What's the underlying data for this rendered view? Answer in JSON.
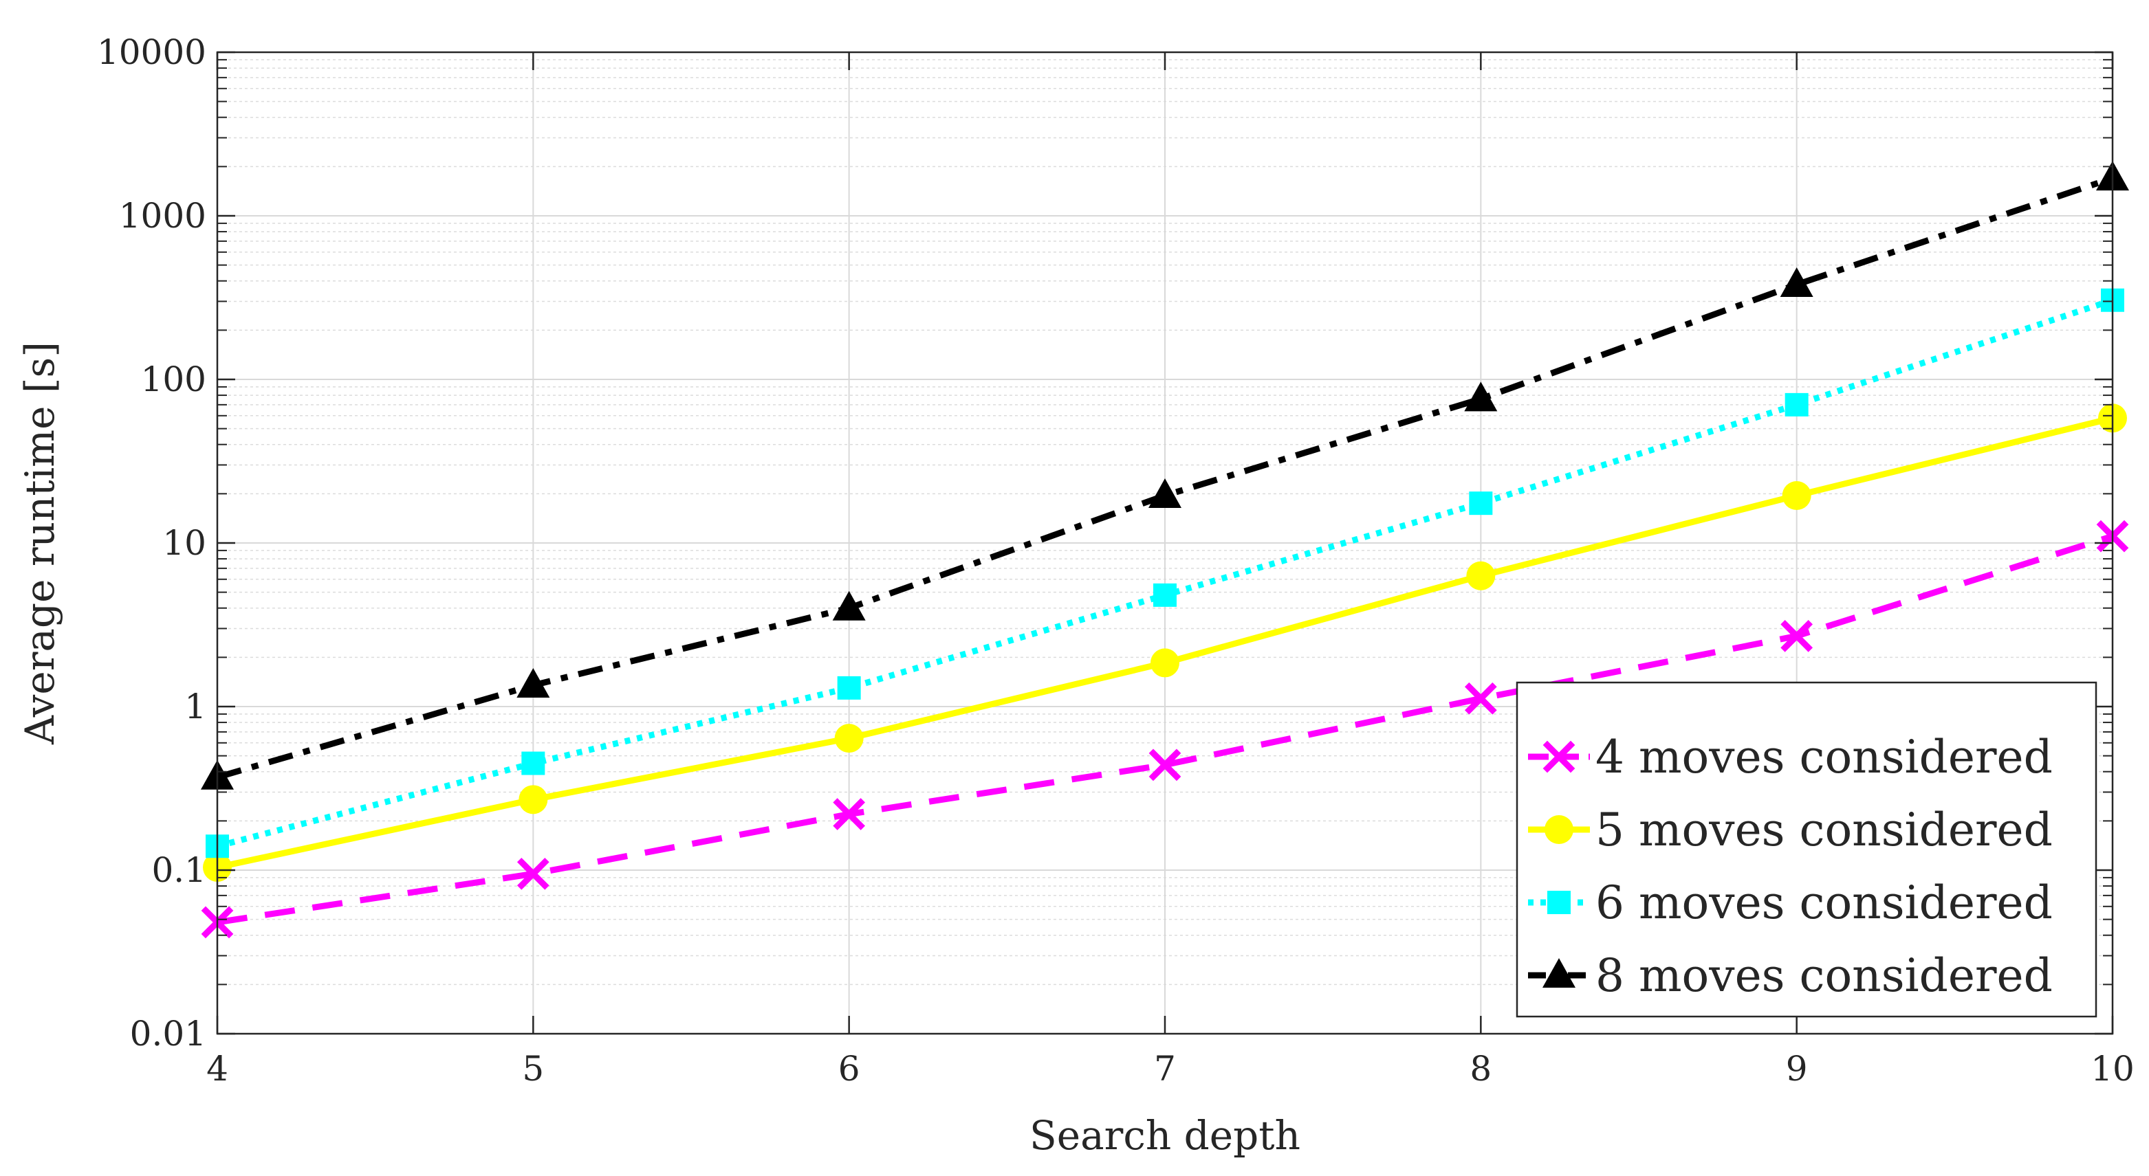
{
  "chart_data": {
    "type": "line",
    "title": "",
    "xlabel": "Search depth",
    "ylabel": "Average runtime [s]",
    "x": [
      4,
      5,
      6,
      7,
      8,
      9,
      10
    ],
    "xlim": [
      4,
      10
    ],
    "ylim": [
      0.01,
      10000
    ],
    "yscale": "log",
    "xticks": [
      "4",
      "5",
      "6",
      "7",
      "8",
      "9",
      "10"
    ],
    "yticks": [
      "0.01",
      "0.1",
      "1",
      "10",
      "100",
      "1000",
      "10000"
    ],
    "grid": true,
    "minor_grid": true,
    "legend_position": "bottom-right",
    "series": [
      {
        "name": "4 moves considered",
        "values": [
          0.048,
          0.095,
          0.22,
          0.44,
          1.12,
          2.7,
          11.0
        ],
        "color": "#ff00ff",
        "line_style": "dashed",
        "marker": "x"
      },
      {
        "name": "5 moves considered",
        "values": [
          0.104,
          0.27,
          0.64,
          1.85,
          6.3,
          19.5,
          58
        ],
        "color": "#ffff00",
        "line_style": "solid",
        "marker": "circle"
      },
      {
        "name": "6 moves considered",
        "values": [
          0.14,
          0.45,
          1.3,
          4.8,
          17.5,
          70,
          305
        ],
        "color": "#00ffff",
        "line_style": "dotted",
        "marker": "square"
      },
      {
        "name": "8 moves considered",
        "values": [
          0.37,
          1.35,
          4.0,
          19.5,
          76,
          380,
          1700
        ],
        "color": "#000000",
        "line_style": "dash-dot",
        "marker": "triangle"
      }
    ]
  }
}
